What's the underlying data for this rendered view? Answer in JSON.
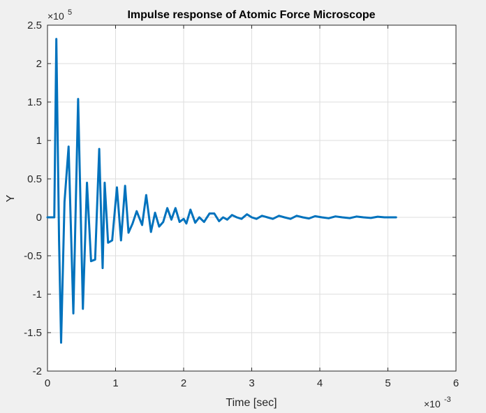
{
  "chart_data": {
    "type": "line",
    "title": "Impulse response of Atomic Force Microscope",
    "xlabel": "Time [sec]",
    "ylabel": "Y",
    "x_exponent_label": "×10",
    "x_exponent_power": "-3",
    "y_exponent_label": "×10",
    "y_exponent_power": "5",
    "xlim": [
      0,
      0.006
    ],
    "ylim": [
      -200000,
      250000
    ],
    "xticks": [
      0,
      0.001,
      0.002,
      0.003,
      0.004,
      0.005,
      0.006
    ],
    "yticks": [
      -200000,
      -150000,
      -100000,
      -50000,
      0,
      50000,
      100000,
      150000,
      200000,
      250000
    ],
    "xtick_labels": [
      "0",
      "1",
      "2",
      "3",
      "4",
      "5",
      "6"
    ],
    "ytick_labels": [
      "-2",
      "-1.5",
      "-1",
      "-0.5",
      "0",
      "0.5",
      "1",
      "1.5",
      "2",
      "2.5"
    ],
    "grid": true,
    "line_color": "#0072bd",
    "series": [
      {
        "x": [
          0,
          0.0001,
          0.00013,
          0.00017,
          0.0002,
          0.00025,
          0.00031,
          0.00038,
          0.00045,
          0.00052,
          0.00058,
          0.00064,
          0.0007,
          0.00076,
          0.00081,
          0.00084,
          0.00089,
          0.00095,
          0.00102,
          0.00108,
          0.00114,
          0.00119,
          0.00125,
          0.00131,
          0.00139,
          0.00145,
          0.00152,
          0.00158,
          0.00164,
          0.0017,
          0.00176,
          0.00182,
          0.00188,
          0.00194,
          0.002,
          0.00204,
          0.0021,
          0.00217,
          0.00223,
          0.0023,
          0.00238,
          0.00245,
          0.00252,
          0.00258,
          0.00264,
          0.00271,
          0.00278,
          0.00285,
          0.00293,
          0.003,
          0.00307,
          0.00315,
          0.00323,
          0.00331,
          0.0034,
          0.00348,
          0.00357,
          0.00366,
          0.00375,
          0.00384,
          0.00393,
          0.00403,
          0.00413,
          0.00423,
          0.00433,
          0.00444,
          0.00454,
          0.00464,
          0.00475,
          0.00485,
          0.00495,
          0.00505,
          0.00512
        ],
        "y": [
          0,
          0,
          232000,
          -30000,
          -163000,
          20000,
          92000,
          -125000,
          154000,
          -119000,
          45000,
          -57000,
          -55000,
          89000,
          -66000,
          45000,
          -33000,
          -30000,
          39000,
          -30000,
          41000,
          -20000,
          -8000,
          8000,
          -10000,
          29000,
          -19000,
          6000,
          -12000,
          -6000,
          12000,
          -3000,
          12000,
          -6000,
          -2000,
          -8000,
          10000,
          -7000,
          0,
          -6000,
          5000,
          5000,
          -5000,
          0,
          -3000,
          3000,
          0,
          -2000,
          4000,
          0,
          -2000,
          2000,
          0,
          -2000,
          2000,
          0,
          -2000,
          2000,
          0,
          -1500,
          1500,
          0,
          -1200,
          1200,
          0,
          -1000,
          1000,
          0,
          -800,
          800,
          0,
          0,
          0
        ]
      }
    ]
  }
}
